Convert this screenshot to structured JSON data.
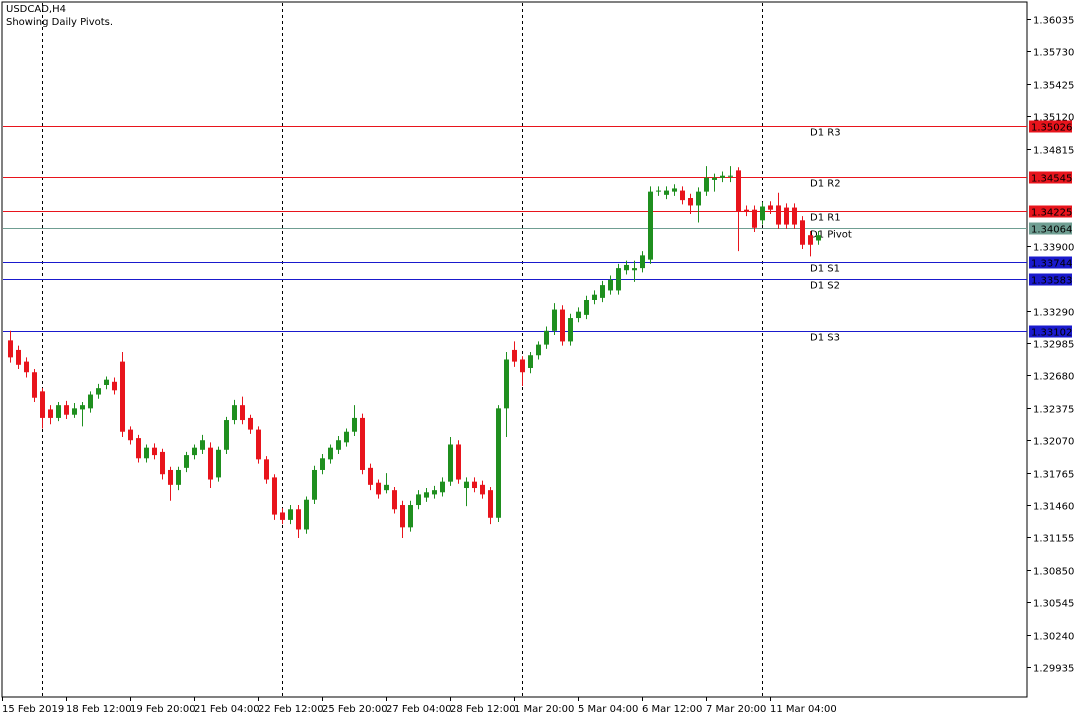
{
  "chart_data": {
    "type": "candlestick",
    "title": "USDCAD,H4",
    "subtitle": "Showing Daily Pivots.",
    "categories": [
      "15 Feb 2019",
      null,
      null,
      null,
      null,
      null,
      null,
      null,
      "18 Feb 12:00",
      null,
      null,
      null,
      null,
      null,
      null,
      null,
      "19 Feb 20:00",
      null,
      null,
      null,
      null,
      null,
      null,
      null,
      "21 Feb 04:00",
      null,
      null,
      null,
      null,
      null,
      null,
      null,
      "22 Feb 12:00",
      null,
      null,
      null,
      null,
      null,
      null,
      null,
      "25 Feb 20:00",
      null,
      null,
      null,
      null,
      null,
      null,
      null,
      "27 Feb 04:00",
      null,
      null,
      null,
      null,
      null,
      null,
      null,
      "28 Feb 12:00",
      null,
      null,
      null,
      null,
      null,
      null,
      null,
      "1 Mar 20:00",
      null,
      null,
      null,
      null,
      null,
      null,
      null,
      "5 Mar 04:00",
      null,
      null,
      null,
      null,
      null,
      null,
      null,
      "6 Mar 12:00",
      null,
      null,
      null,
      null,
      null,
      null,
      null,
      "7 Mar 20:00",
      null,
      null,
      null,
      null,
      null,
      null,
      null,
      "11 Mar 04:00",
      null,
      null,
      null,
      null,
      null
    ],
    "open": [
      1.3301,
      1.3292,
      1.3281,
      1.3271,
      1.3253,
      1.3236,
      1.3228,
      1.324,
      1.3231,
      1.3236,
      1.3237,
      1.325,
      1.3259,
      1.3262,
      1.3281,
      1.3217,
      1.3209,
      1.319,
      1.32,
      1.3196,
      1.3179,
      1.3165,
      1.3181,
      1.3193,
      1.3198,
      1.32,
      1.3172,
      1.3198,
      1.3226,
      1.324,
      1.3228,
      1.3217,
      1.3189,
      1.3172,
      1.3139,
      1.3132,
      1.3142,
      1.3123,
      1.3151,
      1.3179,
      1.3189,
      1.3198,
      1.3205,
      1.3215,
      1.3228,
      1.3181,
      1.3167,
      1.316,
      1.316,
      1.3146,
      1.3125,
      1.3146,
      1.3153,
      1.3156,
      1.3158,
      1.3168,
      1.3203,
      1.3162,
      1.3168,
      1.3165,
      1.316,
      1.3134,
      1.3237,
      1.3292,
      1.3283,
      1.3275,
      1.3287,
      1.3297,
      1.331,
      1.333,
      1.33,
      1.3322,
      1.3325,
      1.3339,
      1.3341,
      1.3348,
      1.3348,
      1.3367,
      1.3367,
      1.3369,
      1.3377,
      1.3441,
      1.3438,
      1.3441,
      1.3442,
      1.3435,
      1.3428,
      1.3441,
      1.3452,
      1.3454,
      1.3455,
      1.3461,
      1.3424,
      1.3424,
      1.3414,
      1.3428,
      1.3428,
      1.3426,
      1.3426,
      1.3414,
      1.34,
      1.3395
    ],
    "high": [
      1.331,
      1.3296,
      1.3285,
      1.3274,
      1.3256,
      1.324,
      1.3243,
      1.3244,
      1.3242,
      1.3243,
      1.3253,
      1.326,
      1.3267,
      1.3266,
      1.329,
      1.322,
      1.3212,
      1.3203,
      1.3204,
      1.3199,
      1.3182,
      1.3182,
      1.3196,
      1.3203,
      1.3212,
      1.3205,
      1.3201,
      1.3229,
      1.3245,
      1.3248,
      1.3231,
      1.322,
      1.3192,
      1.3175,
      1.3143,
      1.3146,
      1.3146,
      1.3154,
      1.3183,
      1.3194,
      1.3203,
      1.3211,
      1.3218,
      1.324,
      1.3232,
      1.3185,
      1.317,
      1.3176,
      1.3163,
      1.315,
      1.315,
      1.316,
      1.3162,
      1.3164,
      1.3172,
      1.321,
      1.3207,
      1.3172,
      1.3172,
      1.3169,
      1.3163,
      1.324,
      1.329,
      1.33,
      1.3286,
      1.329,
      1.33,
      1.3314,
      1.3336,
      1.3334,
      1.3326,
      1.3332,
      1.3343,
      1.3348,
      1.3357,
      1.3362,
      1.3373,
      1.3376,
      1.3376,
      1.3385,
      1.3446,
      1.3446,
      1.3446,
      1.3448,
      1.3446,
      1.3439,
      1.3445,
      1.3465,
      1.3458,
      1.346,
      1.3465,
      1.3464,
      1.3428,
      1.3428,
      1.3431,
      1.3432,
      1.344,
      1.343,
      1.343,
      1.3418,
      1.3404,
      1.3404
    ],
    "low": [
      1.328,
      1.3274,
      1.3266,
      1.3243,
      1.3218,
      1.3222,
      1.3225,
      1.3227,
      1.3228,
      1.322,
      1.3233,
      1.3246,
      1.3255,
      1.325,
      1.321,
      1.3203,
      1.3186,
      1.3186,
      1.3189,
      1.317,
      1.315,
      1.316,
      1.3177,
      1.3189,
      1.3194,
      1.3162,
      1.3168,
      1.3194,
      1.3222,
      1.3222,
      1.3213,
      1.3185,
      1.3166,
      1.3132,
      1.3128,
      1.3128,
      1.3115,
      1.3119,
      1.3147,
      1.3175,
      1.3185,
      1.3194,
      1.3201,
      1.3211,
      1.3175,
      1.316,
      1.3152,
      1.3157,
      1.3138,
      1.3115,
      1.3121,
      1.3142,
      1.3149,
      1.3152,
      1.3154,
      1.3164,
      1.3166,
      1.3145,
      1.3158,
      1.3152,
      1.3128,
      1.313,
      1.321,
      1.3276,
      1.3258,
      1.327,
      1.3283,
      1.3293,
      1.3306,
      1.3296,
      1.3296,
      1.3318,
      1.3321,
      1.3335,
      1.3337,
      1.3344,
      1.3344,
      1.3363,
      1.3356,
      1.3365,
      1.3373,
      1.3437,
      1.3434,
      1.3437,
      1.3429,
      1.342,
      1.3412,
      1.3437,
      1.3441,
      1.345,
      1.345,
      1.3385,
      1.3418,
      1.3403,
      1.341,
      1.342,
      1.3406,
      1.3406,
      1.3406,
      1.3387,
      1.338,
      1.3391
    ],
    "close": [
      1.3285,
      1.3278,
      1.3271,
      1.3247,
      1.3228,
      1.3228,
      1.324,
      1.3231,
      1.3237,
      1.324,
      1.325,
      1.3256,
      1.3264,
      1.3254,
      1.3215,
      1.3207,
      1.319,
      1.32,
      1.3193,
      1.3175,
      1.3165,
      1.3179,
      1.3193,
      1.32,
      1.3207,
      1.317,
      1.3198,
      1.3226,
      1.324,
      1.3226,
      1.3217,
      1.3189,
      1.317,
      1.3137,
      1.3132,
      1.3142,
      1.3123,
      1.3151,
      1.3179,
      1.319,
      1.32,
      1.3207,
      1.3215,
      1.3228,
      1.3179,
      1.3165,
      1.3156,
      1.3165,
      1.3142,
      1.3125,
      1.3146,
      1.3156,
      1.3158,
      1.316,
      1.3168,
      1.3203,
      1.317,
      1.3168,
      1.3162,
      1.3156,
      1.3134,
      1.3237,
      1.3283,
      1.3281,
      1.3271,
      1.3287,
      1.3297,
      1.331,
      1.333,
      1.33,
      1.3322,
      1.3328,
      1.3339,
      1.3344,
      1.3353,
      1.3358,
      1.3369,
      1.3372,
      1.3369,
      1.3381,
      1.3441,
      1.3442,
      1.3442,
      1.3444,
      1.3433,
      1.3428,
      1.3441,
      1.3454,
      1.3454,
      1.3456,
      1.3456,
      1.3422,
      1.3422,
      1.3407,
      1.3427,
      1.3424,
      1.341,
      1.341,
      1.341,
      1.3391,
      1.3391,
      1.34
    ],
    "up_color": "#1f8f1f",
    "down_color": "#e8141c",
    "ylim": [
      1.29653,
      1.36195
    ],
    "yticks": [
      1.36035,
      {
        "value": 1.3573,
        "label": "1.35730"
      },
      1.35425,
      {
        "value": 1.3512,
        "label": "1.35120"
      },
      1.34815,
      {
        "value": 1.339,
        "label": "1.33900"
      },
      {
        "value": 1.3329,
        "label": "1.33290"
      },
      1.32985,
      {
        "value": 1.3268,
        "label": "1.32680"
      },
      1.32375,
      {
        "value": 1.3207,
        "label": "1.32070"
      },
      1.31765,
      {
        "value": 1.3146,
        "label": "1.31460"
      },
      1.31155,
      {
        "value": 1.3085,
        "label": "1.30850"
      },
      1.30545,
      {
        "value": 1.3024,
        "label": "1.30240"
      },
      1.29935
    ],
    "levels": [
      {
        "name": "D1 R3",
        "value": 1.35026,
        "color": "#e8141c"
      },
      {
        "name": "D1 R2",
        "value": 1.34545,
        "color": "#e8141c"
      },
      {
        "name": "D1 R1",
        "value": 1.34225,
        "color": "#e8141c"
      },
      {
        "name": "D1 Pivot",
        "value": 1.34064,
        "color": "#6f9e92"
      },
      {
        "name": "D1 S1",
        "value": 1.33744,
        "color": "#1a1acd"
      },
      {
        "name": "D1 S2",
        "value": 1.33583,
        "color": "#1a1acd"
      },
      {
        "name": "D1 S3",
        "value": 1.33102,
        "color": "#1a1acd"
      }
    ]
  }
}
